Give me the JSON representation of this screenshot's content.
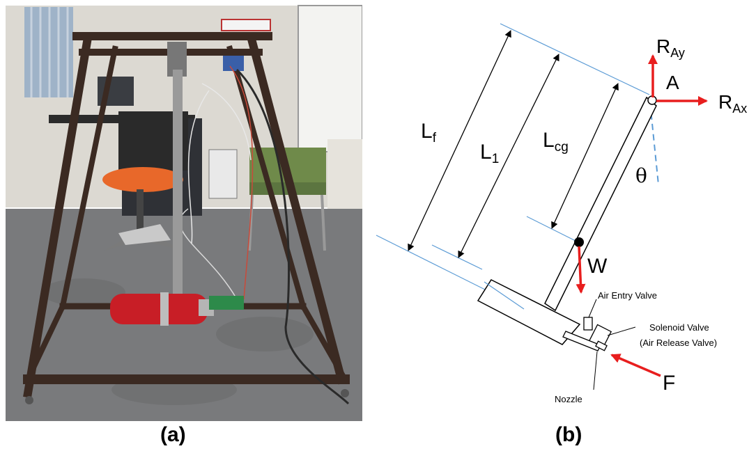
{
  "captions": {
    "a": "(a)",
    "b": "(b)"
  },
  "diagram": {
    "labels": {
      "L_f": "L",
      "L_f_sub": "f",
      "L_1": "L",
      "L_1_sub": "1",
      "L_cg": "L",
      "L_cg_sub": "cg",
      "R_Ay": "R",
      "R_Ay_sub": "Ay",
      "R_Ax": "R",
      "R_Ax_sub": "Ax",
      "pivot": "A",
      "angle": "θ",
      "weight": "W",
      "force": "F",
      "air_entry_valve": "Air Entry Valve",
      "solenoid_valve": "Solenoid Valve",
      "air_release_valve": "(Air Release Valve)",
      "nozzle": "Nozzle"
    },
    "colors": {
      "reference_lines": "#5b9bd5",
      "force_arrows": "#e81e1e",
      "outline": "#000000"
    }
  },
  "photo": {
    "colors": {
      "floor": "#77787a",
      "wall": "#d9d6cf",
      "frame": "#3b2a22",
      "extinguisher": "#c81e26",
      "chair_seat": "#e8682a",
      "chair_green": "#6f8a4a"
    }
  }
}
